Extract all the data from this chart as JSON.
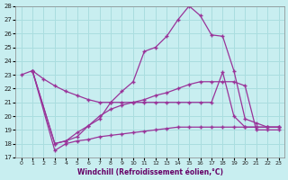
{
  "xlabel": "Windchill (Refroidissement éolien,°C)",
  "background_color": "#c8eef0",
  "grid_color": "#aadddf",
  "line_color": "#993399",
  "xlim": [
    -0.5,
    23.5
  ],
  "ylim": [
    17,
    28
  ],
  "yticks": [
    17,
    18,
    19,
    20,
    21,
    22,
    23,
    24,
    25,
    26,
    27,
    28
  ],
  "xticks": [
    0,
    1,
    2,
    3,
    4,
    5,
    6,
    7,
    8,
    9,
    10,
    11,
    12,
    13,
    14,
    15,
    16,
    17,
    18,
    19,
    20,
    21,
    22,
    23
  ],
  "line1_x": [
    0,
    1,
    2,
    3,
    4,
    5,
    6,
    7,
    8,
    9,
    10,
    11,
    12,
    13,
    14,
    15,
    16,
    17,
    18,
    19,
    20,
    21,
    22,
    23
  ],
  "line1_y": [
    23.0,
    23.3,
    22.7,
    22.2,
    21.8,
    21.5,
    21.2,
    21.0,
    21.0,
    21.0,
    21.0,
    21.0,
    21.0,
    21.0,
    21.0,
    21.0,
    21.0,
    21.0,
    23.2,
    20.0,
    19.2,
    19.2,
    19.2,
    19.2
  ],
  "line2_x": [
    1,
    3,
    4,
    5,
    6,
    7,
    8,
    9,
    10,
    11,
    12,
    13,
    14,
    15,
    16,
    17,
    18,
    19,
    20,
    21,
    22,
    23
  ],
  "line2_y": [
    23.3,
    18.0,
    18.2,
    18.5,
    19.3,
    19.8,
    21.0,
    21.8,
    22.5,
    24.7,
    25.0,
    25.8,
    27.0,
    28.0,
    27.3,
    25.9,
    25.8,
    23.3,
    19.8,
    19.5,
    19.2,
    19.2
  ],
  "line3_x": [
    1,
    3,
    4,
    5,
    6,
    7,
    8,
    9,
    10,
    11,
    12,
    13,
    14,
    15,
    16,
    17,
    18,
    19,
    20,
    21,
    22,
    23
  ],
  "line3_y": [
    23.3,
    18.0,
    18.2,
    18.8,
    19.3,
    20.0,
    20.5,
    20.8,
    21.0,
    21.2,
    21.5,
    21.7,
    22.0,
    22.3,
    22.5,
    22.5,
    22.5,
    22.5,
    22.2,
    19.0,
    19.0,
    19.0
  ],
  "line4_x": [
    1,
    3,
    4,
    5,
    6,
    7,
    8,
    9,
    10,
    11,
    12,
    13,
    14,
    15,
    16,
    17,
    18,
    19,
    20,
    21,
    22,
    23
  ],
  "line4_y": [
    23.3,
    17.5,
    18.0,
    18.2,
    18.3,
    18.5,
    18.6,
    18.7,
    18.8,
    18.9,
    19.0,
    19.1,
    19.2,
    19.2,
    19.2,
    19.2,
    19.2,
    19.2,
    19.2,
    19.2,
    19.2,
    19.2
  ]
}
